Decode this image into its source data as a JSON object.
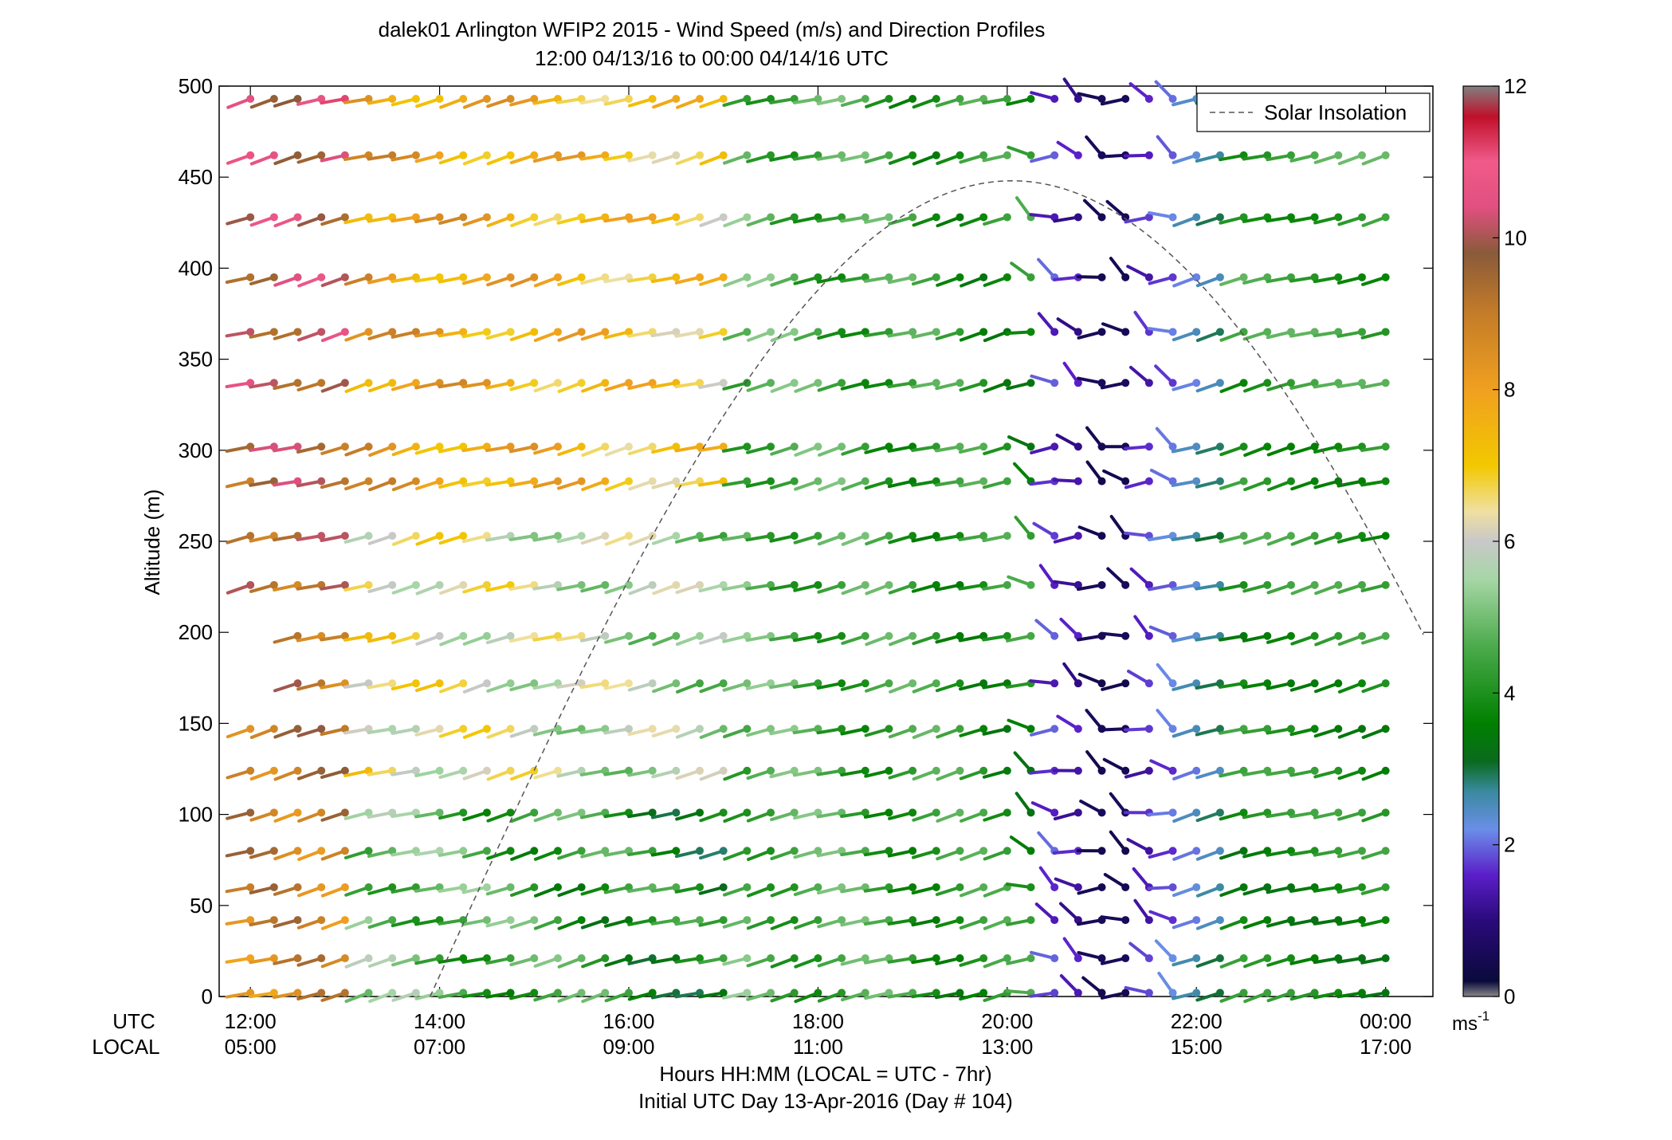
{
  "chart_data": {
    "type": "scatter",
    "title_line1": "dalek01 Arlington WFIP2 2015 - Wind Speed (m/s) and Direction Profiles",
    "title_line2": "12:00 04/13/16 to 00:00 04/14/16  UTC",
    "ylabel": "Altitude (m)",
    "xlabel_line1": "Hours HH:MM  (LOCAL = UTC - 7hr)",
    "xlabel_line2": "Initial UTC Day 13-Apr-2016 (Day # 104)",
    "utc_label": "UTC",
    "local_label": "LOCAL",
    "xlim_hours_utc": [
      11.67,
      24.5
    ],
    "ylim": [
      0,
      500
    ],
    "y_ticks": [
      "0",
      "50",
      "100",
      "150",
      "200",
      "250",
      "300",
      "350",
      "400",
      "450",
      "500"
    ],
    "x_tick_hours_utc": [
      12,
      14,
      16,
      18,
      20,
      22,
      24
    ],
    "x_ticks_utc": [
      "12:00",
      "14:00",
      "16:00",
      "18:00",
      "20:00",
      "22:00",
      "00:00"
    ],
    "x_ticks_local": [
      "05:00",
      "07:00",
      "09:00",
      "11:00",
      "13:00",
      "15:00",
      "17:00"
    ],
    "altitudes_m": [
      493,
      462,
      428,
      395,
      365,
      337,
      302,
      283,
      253,
      226,
      198,
      172,
      147,
      124,
      101,
      80,
      60,
      42,
      21,
      2
    ],
    "time_start_hour_utc": 12.0,
    "time_step_hours": 0.25,
    "barb_count": 49,
    "legend": {
      "label": "Solar Insolation",
      "placement": "top-right"
    },
    "solar_insolation_curve": {
      "peak_hour_utc": 20.05,
      "peak_altitude_equiv": 448,
      "zero_crossings_hour_utc": [
        13.9,
        26.2
      ]
    },
    "colorbar": {
      "ticks": [
        "0",
        "2",
        "4",
        "6",
        "8",
        "10",
        "12"
      ],
      "unit_base": "ms",
      "unit_exp": "-1",
      "range": [
        0,
        12
      ],
      "stops": [
        {
          "v": 0.0,
          "c": "#888888"
        },
        {
          "v": 0.2,
          "c": "#0a0a3c"
        },
        {
          "v": 1.0,
          "c": "#2a0a7a"
        },
        {
          "v": 1.6,
          "c": "#5a1ec8"
        },
        {
          "v": 2.2,
          "c": "#6a8ee8"
        },
        {
          "v": 2.7,
          "c": "#3a8aa0"
        },
        {
          "v": 3.1,
          "c": "#0a6a1e"
        },
        {
          "v": 3.6,
          "c": "#008000"
        },
        {
          "v": 4.6,
          "c": "#4aaa4a"
        },
        {
          "v": 5.5,
          "c": "#a6d6a6"
        },
        {
          "v": 6.0,
          "c": "#c8c8c8"
        },
        {
          "v": 6.4,
          "c": "#f0e0a0"
        },
        {
          "v": 7.0,
          "c": "#f2c800"
        },
        {
          "v": 8.0,
          "c": "#f0a020"
        },
        {
          "v": 9.0,
          "c": "#c47c28"
        },
        {
          "v": 9.8,
          "c": "#8a5a3a"
        },
        {
          "v": 10.4,
          "c": "#e05080"
        },
        {
          "v": 11.0,
          "c": "#f05a8a"
        },
        {
          "v": 11.6,
          "c": "#c0102a"
        },
        {
          "v": 12.0,
          "c": "#808080"
        }
      ]
    }
  }
}
